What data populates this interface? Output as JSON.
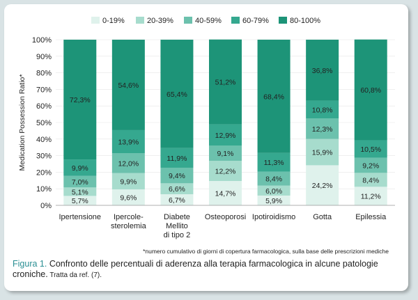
{
  "chart_data": {
    "type": "bar",
    "stacked": true,
    "ylabel": "Medication Possession Ratio*",
    "ylim": [
      0,
      100
    ],
    "yticks": [
      "0%",
      "10%",
      "20%",
      "30%",
      "40%",
      "50%",
      "60%",
      "70%",
      "80%",
      "90%",
      "100%"
    ],
    "legend_position": "top",
    "categories": [
      "Ipertensione",
      "Ipercole-\nsterolemia",
      "Diabete\nMellito\ndi tipo 2",
      "Osteoporosi",
      "Ipotiroidismo",
      "Gotta",
      "Epilessia"
    ],
    "series": [
      {
        "name": "0-19%",
        "color": "#dff2ec",
        "values": [
          5.7,
          9.6,
          6.7,
          14.7,
          5.9,
          24.2,
          11.2
        ]
      },
      {
        "name": "20-39%",
        "color": "#a7dccd",
        "values": [
          5.1,
          9.9,
          6.6,
          12.2,
          6.0,
          15.9,
          8.4
        ]
      },
      {
        "name": "40-59%",
        "color": "#6cc1ad",
        "values": [
          7.0,
          12.0,
          9.4,
          9.1,
          8.4,
          12.3,
          9.2
        ]
      },
      {
        "name": "60-79%",
        "color": "#35a88f",
        "values": [
          9.9,
          13.9,
          11.9,
          12.9,
          11.3,
          10.8,
          10.5
        ]
      },
      {
        "name": "80-100%",
        "color": "#1d9478",
        "values": [
          72.3,
          54.6,
          65.4,
          51.2,
          68.4,
          36.8,
          60.8
        ]
      }
    ]
  },
  "footnote": "*numero cumulativo di giorni di copertura farmacologica, sulla base delle prescrizioni mediche",
  "caption": {
    "label": "Figura 1.",
    "text": " Confronto delle percentuali di aderenza alla terapia farmacologica in alcune patologie croniche.",
    "source": " Tratta da ref. (7)."
  }
}
